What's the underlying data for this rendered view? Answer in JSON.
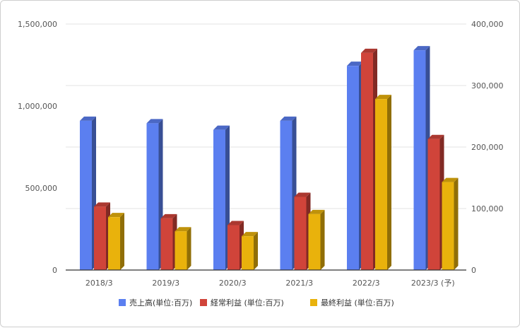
{
  "chart_data": {
    "type": "bar",
    "categories": [
      "2018/3",
      "2019/3",
      "2020/3",
      "2021/3",
      "2022/3",
      "2023/3 (予)"
    ],
    "series": [
      {
        "name": "売上高(単位:百万)",
        "axis": "left",
        "color": "#5b7ff0",
        "values": [
          910000,
          895000,
          855000,
          910000,
          1245000,
          1340000
        ]
      },
      {
        "name": "経常利益 (単位:百万)",
        "axis": "right",
        "color": "#d0443a",
        "values": [
          103000,
          84000,
          73000,
          119000,
          353000,
          213000
        ]
      },
      {
        "name": "最終利益 (単位:百万)",
        "axis": "right",
        "color": "#e9b20c",
        "values": [
          86000,
          63000,
          55000,
          91000,
          278000,
          143000
        ]
      }
    ],
    "y_left": {
      "min": 0,
      "max": 1500000,
      "ticks": [
        "0",
        "500,000",
        "1,000,000",
        "1,500,000"
      ]
    },
    "y_right": {
      "min": 0,
      "max": 400000,
      "ticks": [
        "0",
        "100,000",
        "200,000",
        "300,000",
        "400,000"
      ]
    },
    "grid": true,
    "legend": "bottom",
    "style": "3d-bars"
  }
}
